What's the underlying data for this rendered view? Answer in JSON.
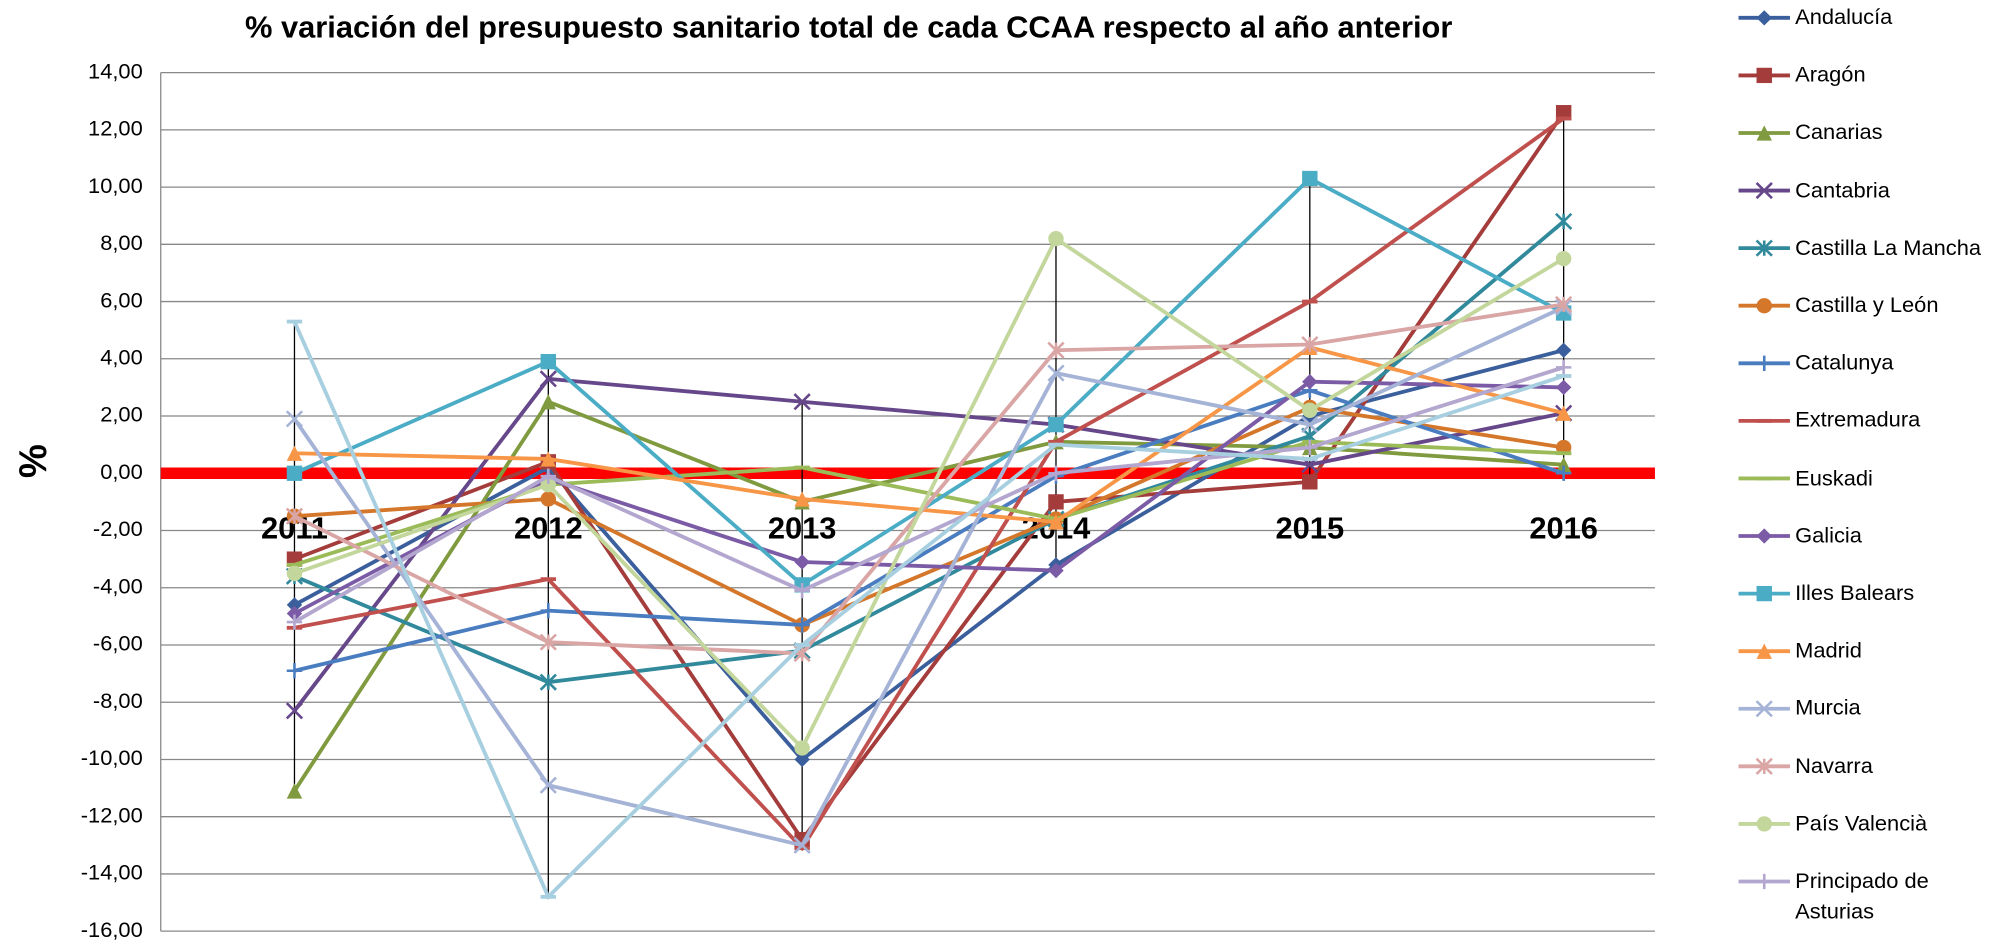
{
  "chart_data": {
    "type": "line",
    "title": "% variación del presupuesto sanitario total de cada CCAA respecto al año anterior",
    "y_label": "%",
    "categories": [
      "2011",
      "2012",
      "2013",
      "2014",
      "2015",
      "2016"
    ],
    "ylim": [
      -16,
      14
    ],
    "yticks": [
      {
        "value": -16,
        "label": "-16,00"
      },
      {
        "value": -14,
        "label": "-14,00"
      },
      {
        "value": -12,
        "label": "-12,00"
      },
      {
        "value": -10,
        "label": "-10,00"
      },
      {
        "value": -8,
        "label": "-8,00"
      },
      {
        "value": -6,
        "label": "-6,00"
      },
      {
        "value": -4,
        "label": "-4,00"
      },
      {
        "value": -2,
        "label": "-2,00"
      },
      {
        "value": 0,
        "label": "0,00"
      },
      {
        "value": 2,
        "label": "2,00"
      },
      {
        "value": 4,
        "label": "4,00"
      },
      {
        "value": 6,
        "label": "6,00"
      },
      {
        "value": 8,
        "label": "8,00"
      },
      {
        "value": 10,
        "label": "10,00"
      },
      {
        "value": 12,
        "label": "12,00"
      },
      {
        "value": 14,
        "label": "14,00"
      }
    ],
    "grid": true,
    "legend": "right",
    "zero_line_color": "#ff0000",
    "high_low_lines": true,
    "series": [
      {
        "name": "Andalucía",
        "color": "#3a5f9c",
        "marker": "diamond",
        "values": [
          -4.6,
          0.2,
          -10.0,
          -3.2,
          2.0,
          4.3
        ]
      },
      {
        "name": "Aragón",
        "color": "#a33c3a",
        "marker": "square",
        "values": [
          -3.0,
          0.4,
          -12.8,
          -1.0,
          -0.3,
          12.6
        ]
      },
      {
        "name": "Canarias",
        "color": "#7f9a3f",
        "marker": "triangle",
        "values": [
          -11.1,
          2.5,
          -1.0,
          1.1,
          0.9,
          0.3
        ]
      },
      {
        "name": "Cantabria",
        "color": "#65478a",
        "marker": "x",
        "values": [
          -8.3,
          3.3,
          2.5,
          1.7,
          0.3,
          2.1
        ]
      },
      {
        "name": "Castilla La Mancha",
        "color": "#31899c",
        "marker": "asterisk",
        "values": [
          -3.6,
          -7.3,
          -6.2,
          -1.6,
          1.3,
          8.8
        ]
      },
      {
        "name": "Castilla y León",
        "color": "#d4772b",
        "marker": "circle",
        "values": [
          -1.5,
          -0.9,
          -5.3,
          -1.6,
          2.3,
          0.9
        ]
      },
      {
        "name": "Catalunya",
        "color": "#4a7cc0",
        "marker": "plus",
        "values": [
          -6.9,
          -4.8,
          -5.3,
          -0.1,
          2.9,
          0.0
        ]
      },
      {
        "name": "Extremadura",
        "color": "#c0504d",
        "marker": "dash",
        "values": [
          -5.4,
          -3.7,
          -13.1,
          1.1,
          6.0,
          12.4
        ]
      },
      {
        "name": "Euskadi",
        "color": "#9bbb59",
        "marker": "dash",
        "values": [
          -3.2,
          -0.4,
          0.2,
          -1.6,
          1.1,
          0.7
        ]
      },
      {
        "name": "Galicia",
        "color": "#7b5ba6",
        "marker": "diamond",
        "values": [
          -4.9,
          -0.2,
          -3.1,
          -3.4,
          3.2,
          3.0
        ]
      },
      {
        "name": "Illes Balears",
        "color": "#4bacc6",
        "marker": "square",
        "values": [
          0.0,
          3.9,
          -3.9,
          1.7,
          10.3,
          5.6
        ]
      },
      {
        "name": "Madrid",
        "color": "#f79646",
        "marker": "triangle",
        "values": [
          0.7,
          0.5,
          -0.9,
          -1.7,
          4.4,
          2.1
        ]
      },
      {
        "name": "Murcia",
        "color": "#a5b3d6",
        "marker": "x",
        "values": [
          1.9,
          -10.9,
          -13.0,
          3.5,
          1.7,
          5.8
        ]
      },
      {
        "name": "Navarra",
        "color": "#d9a5a5",
        "marker": "asterisk",
        "values": [
          -1.5,
          -5.9,
          -6.3,
          4.3,
          4.5,
          5.9
        ]
      },
      {
        "name": "País Valencià",
        "color": "#c3d69b",
        "marker": "circle",
        "values": [
          -3.5,
          -0.4,
          -9.6,
          8.2,
          2.2,
          7.5
        ]
      },
      {
        "name": "Principado de Asturias",
        "color": "#b3a6cf",
        "marker": "plus",
        "values": [
          -5.2,
          -0.1,
          -4.1,
          0.0,
          0.9,
          3.7
        ]
      },
      {
        "color": "#a7cfe0",
        "marker": "dash",
        "values": [
          5.3,
          -14.8,
          -6.0,
          1.0,
          0.5,
          3.4
        ]
      }
    ]
  }
}
